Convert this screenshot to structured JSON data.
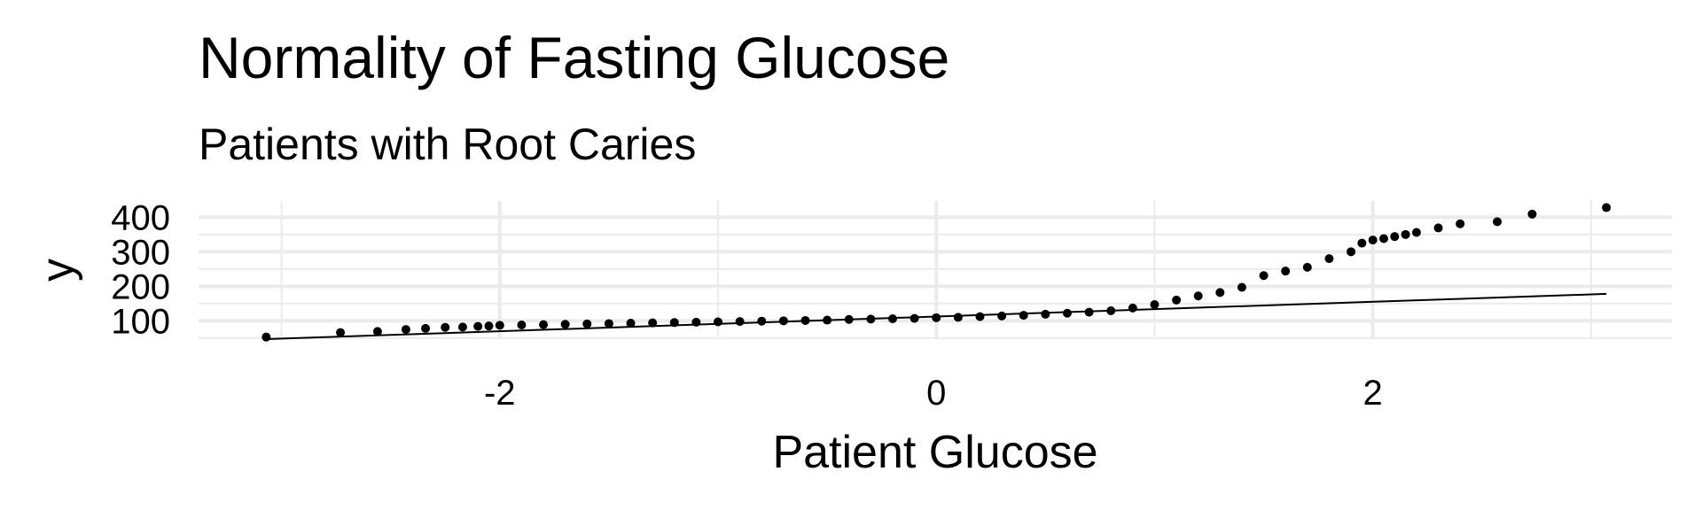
{
  "chart_data": {
    "type": "scatter",
    "title": "Normality of Fasting Glucose",
    "subtitle": "Patients with Root Caries",
    "x_label": "Patient Glucose",
    "y_label": "y",
    "x": [
      -3.07,
      -2.73,
      -2.56,
      -2.43,
      -2.34,
      -2.25,
      -2.17,
      -2.1,
      -2.05,
      -2.0,
      -1.9,
      -1.8,
      -1.7,
      -1.6,
      -1.5,
      -1.4,
      -1.3,
      -1.2,
      -1.1,
      -1.0,
      -0.9,
      -0.8,
      -0.7,
      -0.6,
      -0.5,
      -0.4,
      -0.3,
      -0.2,
      -0.1,
      0,
      0.1,
      0.2,
      0.3,
      0.4,
      0.5,
      0.6,
      0.7,
      0.8,
      0.9,
      1.0,
      1.1,
      1.2,
      1.3,
      1.4,
      1.5,
      1.6,
      1.7,
      1.8,
      1.9,
      1.95,
      2.0,
      2.05,
      2.1,
      2.15,
      2.2,
      2.3,
      2.4,
      2.57,
      2.73,
      3.07
    ],
    "values": [
      53,
      66,
      69,
      75,
      78,
      81,
      82,
      84,
      85,
      87,
      88,
      89,
      90,
      91,
      92,
      93,
      94,
      95,
      96,
      97,
      98,
      99,
      100,
      101,
      102,
      104,
      105,
      106,
      107,
      109,
      110,
      112,
      114,
      116,
      119,
      122,
      125,
      129,
      137,
      147,
      160,
      172,
      182,
      197,
      231,
      244,
      255,
      280,
      300,
      325,
      334,
      338,
      344,
      350,
      356,
      369,
      381,
      387,
      409,
      428
    ],
    "color": "#000000",
    "reference_line": {
      "x": [
        -3.07,
        3.07
      ],
      "y": [
        47,
        178
      ],
      "color": "#000000"
    },
    "xlim": [
      -3.38,
      3.37
    ],
    "ylim": [
      47,
      447
    ],
    "xticks": [
      -2,
      0,
      2
    ],
    "x_minor_ticks": [
      -3,
      -1,
      1,
      3
    ],
    "yticks": [
      100,
      200,
      300,
      400
    ],
    "y_minor_ticks": [
      50,
      150,
      250,
      350
    ],
    "grid": true
  }
}
